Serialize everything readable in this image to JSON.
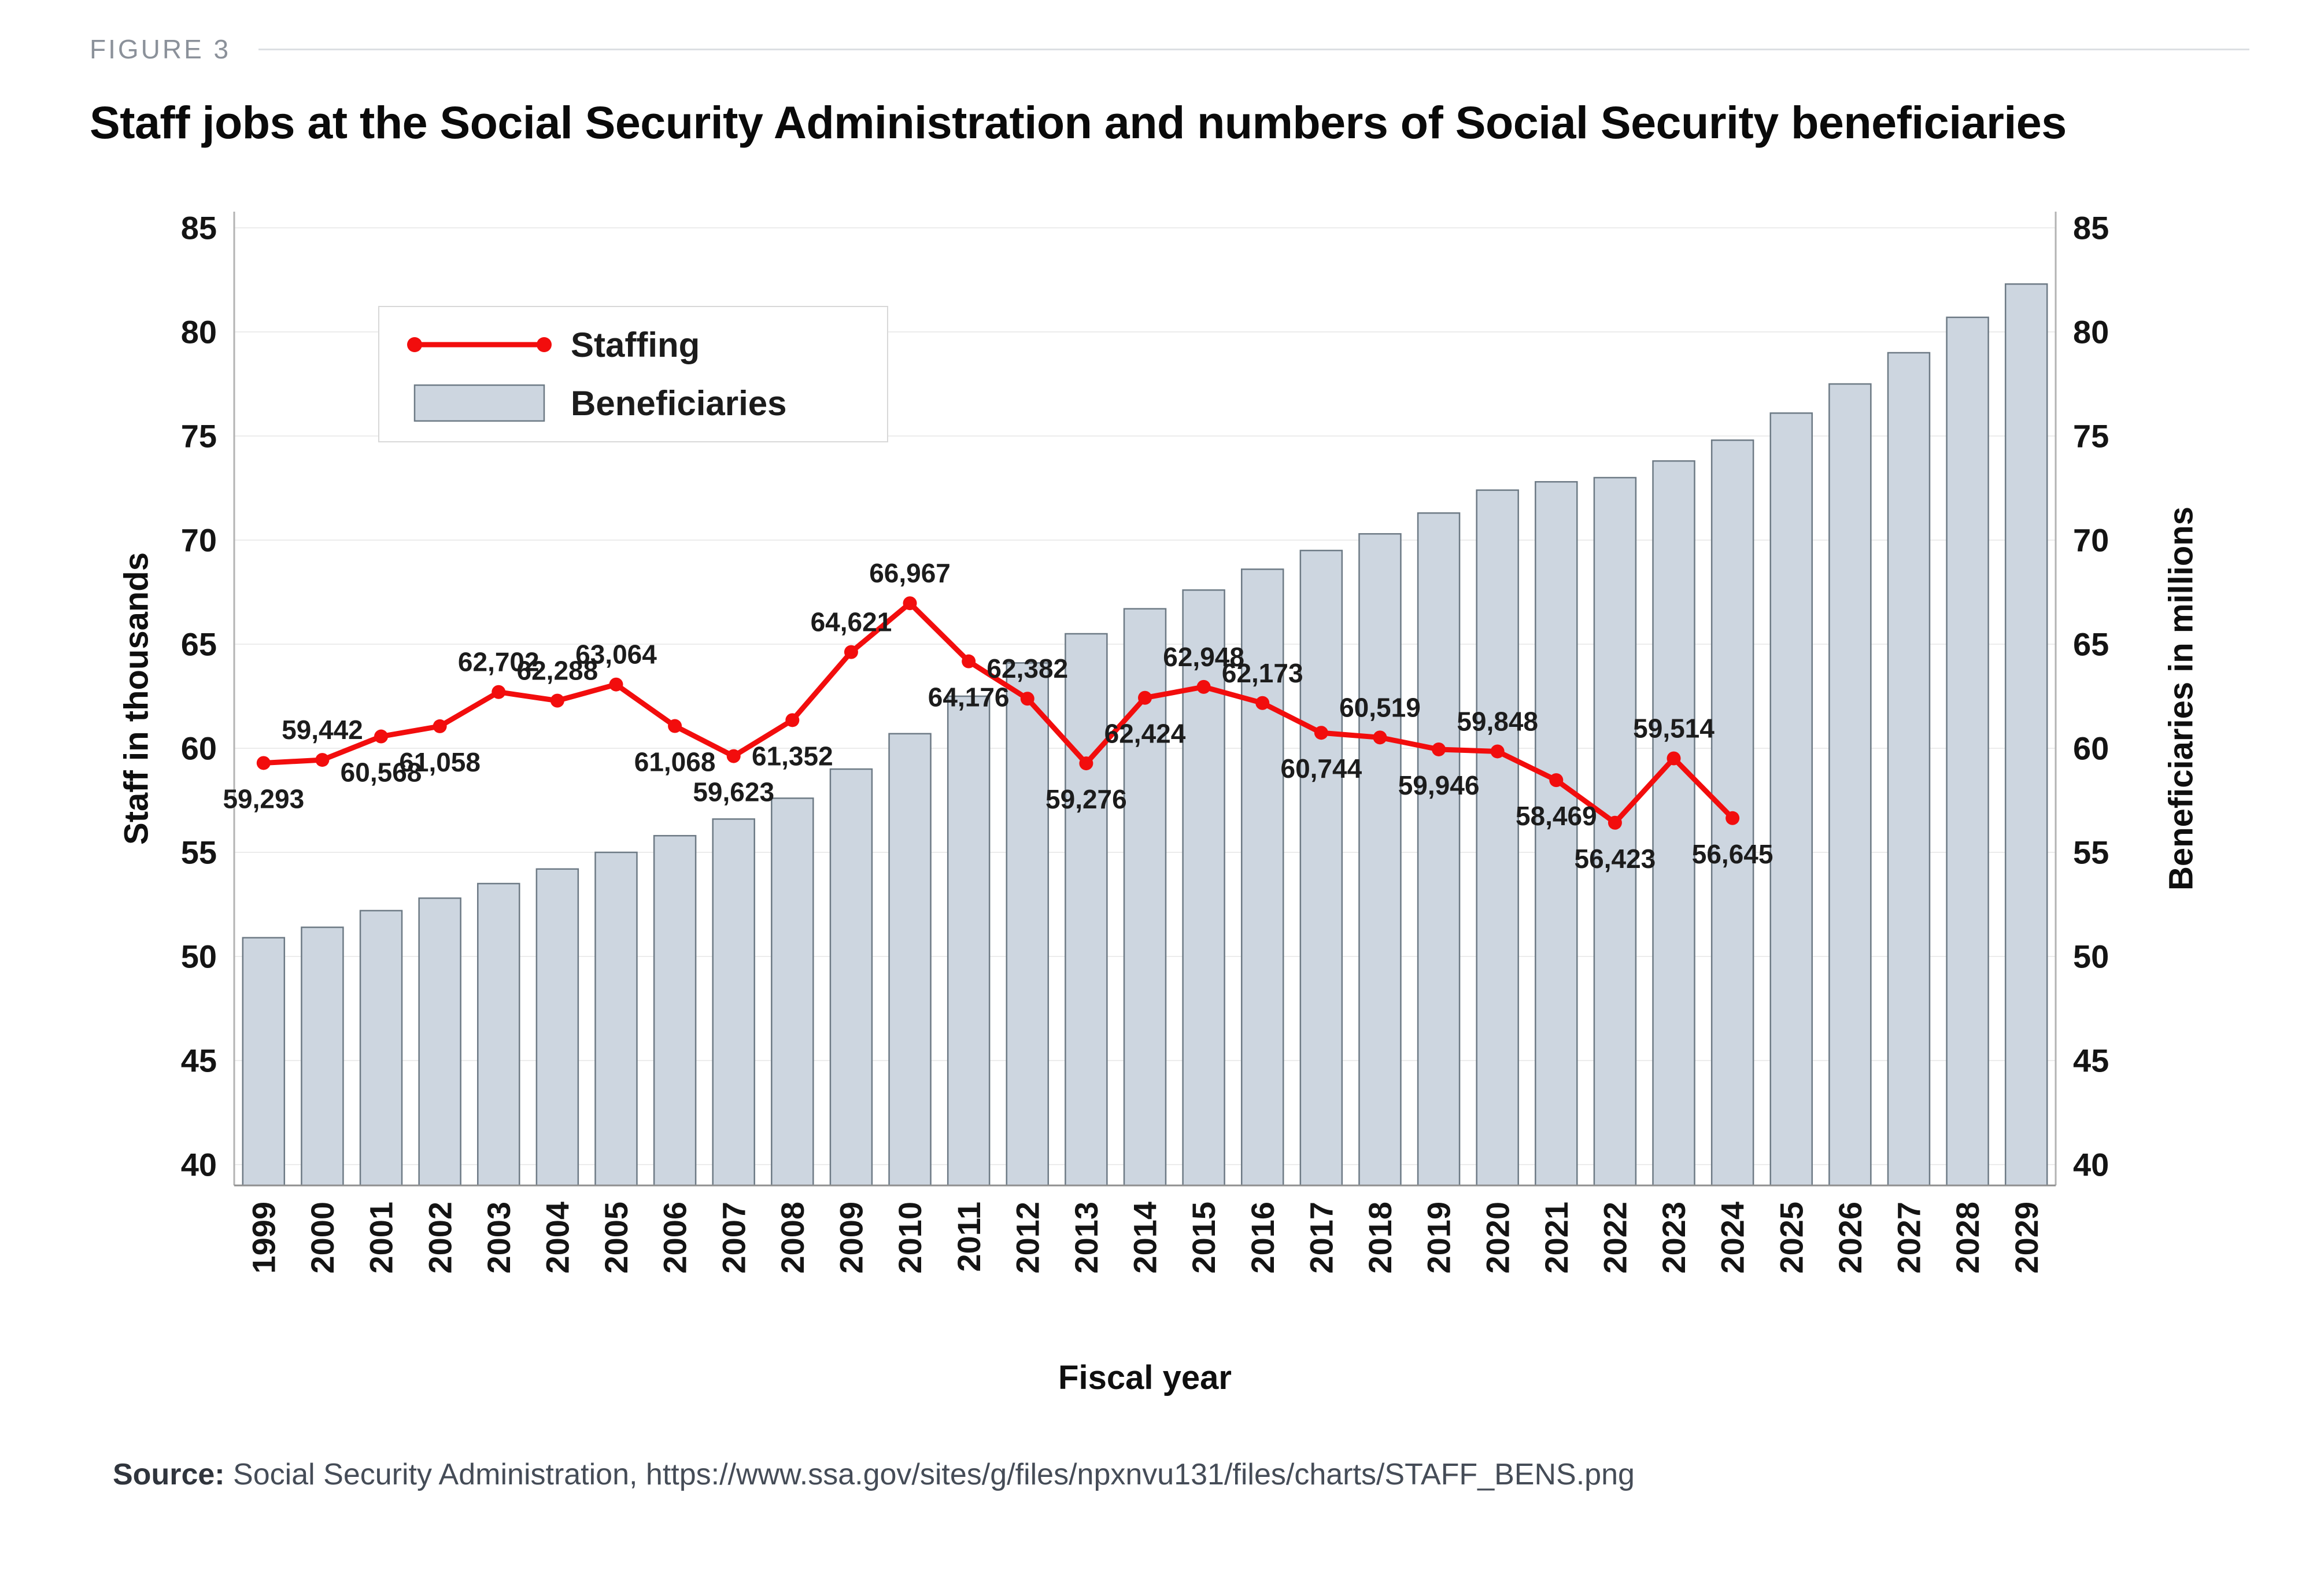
{
  "figure": {
    "label": "FIGURE 3"
  },
  "title": "Staff jobs at the Social Security Administration and numbers of Social Security beneficiaries",
  "source": {
    "prefix": "Source:",
    "text": " Social Security Administration, https://www.ssa.gov/sites/g/files/npxnvu131/files/charts/STAFF_BENS.png"
  },
  "chart_data": {
    "type": "bar",
    "subtype": "bar+line combo, dual axis",
    "x_title": "Fiscal year",
    "y_left_title": "Staff in thousands",
    "y_right_title": "Beneficiaries in millions",
    "y_ticks": [
      40,
      45,
      50,
      55,
      60,
      65,
      70,
      75,
      80,
      85
    ],
    "ylim": [
      39,
      86
    ],
    "grid": true,
    "legend_position": "top-left-inside",
    "colors": {
      "line": "#f20d0d",
      "bar_fill": "#cdd6e0",
      "bar_stroke": "#6d7a85"
    },
    "categories": [
      "1999",
      "2000",
      "2001",
      "2002",
      "2003",
      "2004",
      "2005",
      "2006",
      "2007",
      "2008",
      "2009",
      "2010",
      "2011",
      "2012",
      "2013",
      "2014",
      "2015",
      "2016",
      "2017",
      "2018",
      "2019",
      "2020",
      "2021",
      "2022",
      "2023",
      "2024",
      "2025",
      "2026",
      "2027",
      "2028",
      "2029"
    ],
    "series": [
      {
        "name": "Staffing",
        "type": "line",
        "axis": "left",
        "units": "staff (thousands on axis)",
        "color": "#f20d0d",
        "values": [
          59293,
          59442,
          60568,
          61058,
          62702,
          62288,
          63064,
          61068,
          59623,
          61352,
          64621,
          66967,
          64176,
          62382,
          59276,
          62424,
          62948,
          62173,
          60744,
          60519,
          59946,
          59848,
          58469,
          56423,
          59514,
          56645
        ],
        "labels": [
          "59,293",
          "59,442",
          "60,568",
          "61,058",
          "62,702",
          "62,288",
          "63,064",
          "61,068",
          "59,623",
          "61,352",
          "64,621",
          "66,967",
          "64,176",
          "62,382",
          "59,276",
          "62,424",
          "62,948",
          "62,173",
          "60,744",
          "60,519",
          "59,946",
          "59,848",
          "58,469",
          "56,423",
          "59,514",
          "56,645"
        ],
        "label_positions": [
          "below",
          "above",
          "below",
          "below",
          "above",
          "above",
          "above",
          "below",
          "below",
          "below",
          "above",
          "above",
          "below",
          "above",
          "below",
          "below",
          "above",
          "above",
          "below",
          "above",
          "below",
          "above",
          "below",
          "below",
          "above",
          "below"
        ]
      },
      {
        "name": "Beneficiaries",
        "type": "bar",
        "axis": "right",
        "units": "millions",
        "fill": "#cdd6e0",
        "stroke": "#6d7a85",
        "values": [
          50.9,
          51.4,
          52.2,
          52.8,
          53.5,
          54.2,
          55.0,
          55.8,
          56.6,
          57.6,
          59.0,
          60.7,
          62.5,
          64.1,
          65.5,
          66.7,
          67.6,
          68.6,
          69.5,
          70.3,
          71.3,
          72.4,
          72.8,
          73.0,
          73.8,
          74.8,
          76.1,
          77.5,
          79.0,
          80.7,
          82.3
        ]
      }
    ]
  }
}
